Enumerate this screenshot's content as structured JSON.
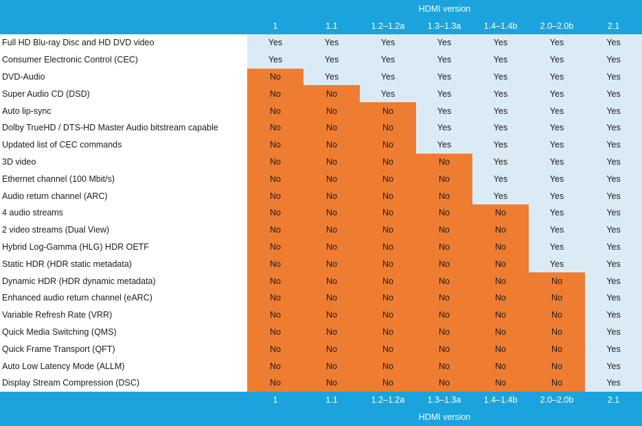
{
  "header": {
    "group_label": "HDMI version",
    "versions": [
      "1",
      "1.1",
      "1.2–1.2a",
      "1.3–1.3a",
      "1.4–1.4b",
      "2.0–2.0b",
      "2.1"
    ]
  },
  "footer": {
    "group_label": "HDMI version",
    "versions": [
      "1",
      "1.1",
      "1.2–1.2a",
      "1.3–1.3a",
      "1.4–1.4b",
      "2.0–2.0b",
      "2.1"
    ]
  },
  "rows": [
    {
      "feature": "Full HD Blu-ray Disc and HD DVD video",
      "values": [
        "Yes",
        "Yes",
        "Yes",
        "Yes",
        "Yes",
        "Yes",
        "Yes"
      ]
    },
    {
      "feature": "Consumer Electronic Control (CEC)",
      "values": [
        "Yes",
        "Yes",
        "Yes",
        "Yes",
        "Yes",
        "Yes",
        "Yes"
      ]
    },
    {
      "feature": "DVD-Audio",
      "values": [
        "No",
        "Yes",
        "Yes",
        "Yes",
        "Yes",
        "Yes",
        "Yes"
      ]
    },
    {
      "feature": "Super Audio CD (DSD)",
      "values": [
        "No",
        "No",
        "Yes",
        "Yes",
        "Yes",
        "Yes",
        "Yes"
      ]
    },
    {
      "feature": "Auto lip-sync",
      "values": [
        "No",
        "No",
        "No",
        "Yes",
        "Yes",
        "Yes",
        "Yes"
      ]
    },
    {
      "feature": "Dolby TrueHD / DTS-HD Master Audio bitstream capable",
      "values": [
        "No",
        "No",
        "No",
        "Yes",
        "Yes",
        "Yes",
        "Yes"
      ]
    },
    {
      "feature": "Updated list of CEC commands",
      "values": [
        "No",
        "No",
        "No",
        "Yes",
        "Yes",
        "Yes",
        "Yes"
      ]
    },
    {
      "feature": "3D video",
      "values": [
        "No",
        "No",
        "No",
        "No",
        "Yes",
        "Yes",
        "Yes"
      ]
    },
    {
      "feature": "Ethernet channel (100 Mbit/s)",
      "values": [
        "No",
        "No",
        "No",
        "No",
        "Yes",
        "Yes",
        "Yes"
      ]
    },
    {
      "feature": "Audio return channel (ARC)",
      "values": [
        "No",
        "No",
        "No",
        "No",
        "Yes",
        "Yes",
        "Yes"
      ]
    },
    {
      "feature": "4 audio streams",
      "values": [
        "No",
        "No",
        "No",
        "No",
        "No",
        "Yes",
        "Yes"
      ]
    },
    {
      "feature": "2 video streams (Dual View)",
      "values": [
        "No",
        "No",
        "No",
        "No",
        "No",
        "Yes",
        "Yes"
      ]
    },
    {
      "feature": "Hybrid Log-Gamma (HLG) HDR OETF",
      "values": [
        "No",
        "No",
        "No",
        "No",
        "No",
        "Yes",
        "Yes"
      ]
    },
    {
      "feature": "Static HDR (HDR static metadata)",
      "values": [
        "No",
        "No",
        "No",
        "No",
        "No",
        "Yes",
        "Yes"
      ]
    },
    {
      "feature": "Dynamic HDR (HDR dynamic metadata)",
      "values": [
        "No",
        "No",
        "No",
        "No",
        "No",
        "No",
        "Yes"
      ]
    },
    {
      "feature": "Enhanced audio return channel (eARC)",
      "values": [
        "No",
        "No",
        "No",
        "No",
        "No",
        "No",
        "Yes"
      ]
    },
    {
      "feature": "Variable Refresh Rate (VRR)",
      "values": [
        "No",
        "No",
        "No",
        "No",
        "No",
        "No",
        "Yes"
      ]
    },
    {
      "feature": "Quick Media Switching (QMS)",
      "values": [
        "No",
        "No",
        "No",
        "No",
        "No",
        "No",
        "Yes"
      ]
    },
    {
      "feature": "Quick Frame Transport (QFT)",
      "values": [
        "No",
        "No",
        "No",
        "No",
        "No",
        "No",
        "Yes"
      ]
    },
    {
      "feature": "Auto Low Latency Mode (ALLM)",
      "values": [
        "No",
        "No",
        "No",
        "No",
        "No",
        "No",
        "Yes"
      ]
    },
    {
      "feature": "Display Stream Compression (DSC)",
      "values": [
        "No",
        "No",
        "No",
        "No",
        "No",
        "No",
        "Yes"
      ]
    }
  ],
  "colors": {
    "header_blue": "#1aa3dc",
    "yes_cell": "#dbebf6",
    "no_cell": "#ee7d31"
  }
}
